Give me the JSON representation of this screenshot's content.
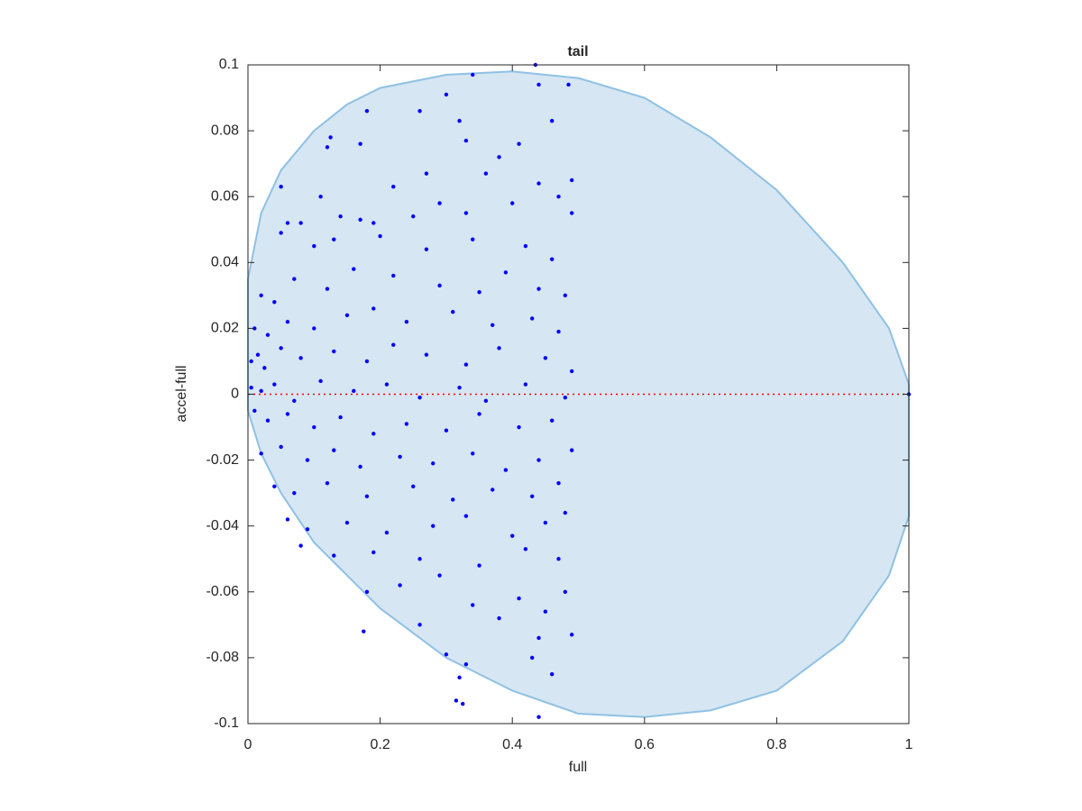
{
  "chart_data": {
    "type": "scatter",
    "title": "tail",
    "xlabel": "full",
    "ylabel": "accel-full",
    "xlim": [
      0,
      1
    ],
    "ylim": [
      -0.1,
      0.1
    ],
    "xticks": [
      0,
      0.2,
      0.4,
      0.6,
      0.8,
      1
    ],
    "yticks": [
      -0.1,
      -0.08,
      -0.06,
      -0.04,
      -0.02,
      0,
      0.02,
      0.04,
      0.06,
      0.08,
      0.1
    ],
    "region": {
      "color": "#d6e6f3",
      "edge_color": "#8fc1e3",
      "x": [
        0,
        0.02,
        0.05,
        0.1,
        0.15,
        0.2,
        0.3,
        0.4,
        0.5,
        0.6,
        0.7,
        0.8,
        0.9,
        0.97,
        1,
        1,
        0.97,
        0.9,
        0.8,
        0.7,
        0.6,
        0.5,
        0.4,
        0.3,
        0.2,
        0.1,
        0.05,
        0.02,
        0
      ],
      "y": [
        0.035,
        0.055,
        0.068,
        0.08,
        0.088,
        0.093,
        0.097,
        0.098,
        0.096,
        0.09,
        0.078,
        0.062,
        0.04,
        0.02,
        0.003,
        -0.037,
        -0.055,
        -0.075,
        -0.09,
        -0.096,
        -0.098,
        -0.097,
        -0.09,
        -0.08,
        -0.065,
        -0.045,
        -0.03,
        -0.018,
        -0.005
      ]
    },
    "hline": {
      "value": 0,
      "color": "#ff0000"
    },
    "series": [
      {
        "color": "#0000ff",
        "x": [
          1,
          0.435,
          0.34,
          0.3,
          0.44,
          0.485,
          0.26,
          0.18,
          0.125,
          0.17,
          0.12,
          0.05,
          0.46,
          0.32,
          0.33,
          0.41,
          0.27,
          0.38,
          0.36,
          0.22,
          0.11,
          0.29,
          0.44,
          0.47,
          0.49,
          0.06,
          0.08,
          0.14,
          0.17,
          0.19,
          0.25,
          0.33,
          0.4,
          0.49,
          0.05,
          0.1,
          0.13,
          0.2,
          0.27,
          0.34,
          0.42,
          0.46,
          0.02,
          0.04,
          0.07,
          0.12,
          0.16,
          0.22,
          0.29,
          0.35,
          0.39,
          0.44,
          0.48,
          0.01,
          0.03,
          0.06,
          0.1,
          0.15,
          0.19,
          0.24,
          0.31,
          0.37,
          0.43,
          0.47,
          0.005,
          0.015,
          0.025,
          0.05,
          0.08,
          0.13,
          0.18,
          0.22,
          0.27,
          0.33,
          0.38,
          0.45,
          0.49,
          0.005,
          0.02,
          0.04,
          0.07,
          0.11,
          0.16,
          0.21,
          0.26,
          0.32,
          0.36,
          0.42,
          0.48,
          0.01,
          0.03,
          0.06,
          0.1,
          0.14,
          0.19,
          0.24,
          0.3,
          0.35,
          0.41,
          0.46,
          0.02,
          0.05,
          0.09,
          0.13,
          0.17,
          0.23,
          0.28,
          0.34,
          0.39,
          0.44,
          0.49,
          0.04,
          0.07,
          0.12,
          0.18,
          0.25,
          0.31,
          0.37,
          0.43,
          0.47,
          0.06,
          0.09,
          0.15,
          0.21,
          0.28,
          0.33,
          0.4,
          0.45,
          0.48,
          0.08,
          0.13,
          0.19,
          0.26,
          0.35,
          0.42,
          0.47,
          0.18,
          0.23,
          0.29,
          0.34,
          0.41,
          0.45,
          0.48,
          0.175,
          0.26,
          0.38,
          0.44,
          0.49,
          0.3,
          0.33,
          0.43,
          0.46,
          0.32,
          0.315,
          0.325,
          0.44
        ],
        "values": [
          0,
          0.1,
          0.097,
          0.091,
          0.094,
          0.094,
          0.086,
          0.086,
          0.078,
          0.076,
          0.075,
          0.063,
          0.083,
          0.083,
          0.077,
          0.076,
          0.067,
          0.072,
          0.067,
          0.063,
          0.06,
          0.058,
          0.064,
          0.06,
          0.065,
          0.052,
          0.052,
          0.054,
          0.053,
          0.052,
          0.054,
          0.055,
          0.058,
          0.055,
          0.049,
          0.045,
          0.047,
          0.048,
          0.044,
          0.047,
          0.045,
          0.041,
          0.03,
          0.028,
          0.035,
          0.032,
          0.038,
          0.036,
          0.033,
          0.031,
          0.037,
          0.032,
          0.03,
          0.02,
          0.018,
          0.022,
          0.02,
          0.024,
          0.026,
          0.022,
          0.025,
          0.021,
          0.023,
          0.019,
          0.01,
          0.012,
          0.008,
          0.014,
          0.011,
          0.013,
          0.01,
          0.015,
          0.012,
          0.009,
          0.014,
          0.011,
          0.007,
          0.002,
          0.001,
          0.003,
          -0.002,
          0.004,
          0.001,
          0.003,
          -0.001,
          0.002,
          -0.002,
          0.003,
          -0.001,
          -0.005,
          -0.008,
          -0.006,
          -0.01,
          -0.007,
          -0.012,
          -0.009,
          -0.011,
          -0.006,
          -0.01,
          -0.008,
          -0.018,
          -0.016,
          -0.02,
          -0.017,
          -0.022,
          -0.019,
          -0.021,
          -0.018,
          -0.023,
          -0.02,
          -0.017,
          -0.028,
          -0.03,
          -0.027,
          -0.031,
          -0.028,
          -0.032,
          -0.029,
          -0.031,
          -0.027,
          -0.038,
          -0.041,
          -0.039,
          -0.042,
          -0.04,
          -0.037,
          -0.043,
          -0.039,
          -0.036,
          -0.046,
          -0.049,
          -0.048,
          -0.05,
          -0.052,
          -0.047,
          -0.05,
          -0.06,
          -0.058,
          -0.055,
          -0.064,
          -0.062,
          -0.066,
          -0.06,
          -0.072,
          -0.07,
          -0.068,
          -0.074,
          -0.073,
          -0.079,
          -0.082,
          -0.08,
          -0.085,
          -0.086,
          -0.093,
          -0.094,
          -0.098
        ]
      }
    ]
  }
}
